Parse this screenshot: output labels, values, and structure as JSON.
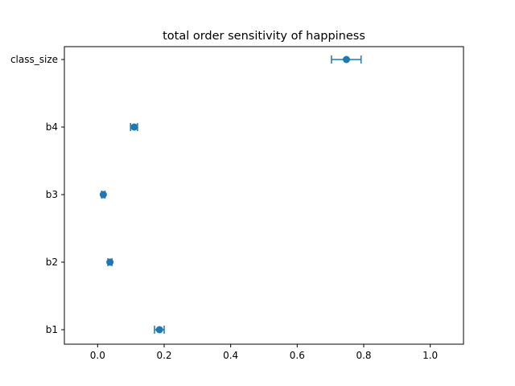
{
  "chart_data": {
    "type": "scatter",
    "title": "total order sensitivity of happiness",
    "xlabel": "",
    "ylabel": "",
    "xlim": [
      -0.1,
      1.1
    ],
    "xticks": [
      0.0,
      0.2,
      0.4,
      0.6,
      0.8,
      1.0
    ],
    "xtick_labels": [
      "0.0",
      "0.2",
      "0.4",
      "0.6",
      "0.8",
      "1.0"
    ],
    "categories": [
      "b1",
      "b2",
      "b3",
      "b4",
      "class_size"
    ],
    "values": [
      0.186,
      0.037,
      0.017,
      0.11,
      0.748
    ],
    "error_low": [
      0.171,
      0.031,
      0.012,
      0.099,
      0.703
    ],
    "error_high": [
      0.2,
      0.043,
      0.022,
      0.12,
      0.792
    ],
    "grid": false,
    "color": "#1f77b4"
  }
}
